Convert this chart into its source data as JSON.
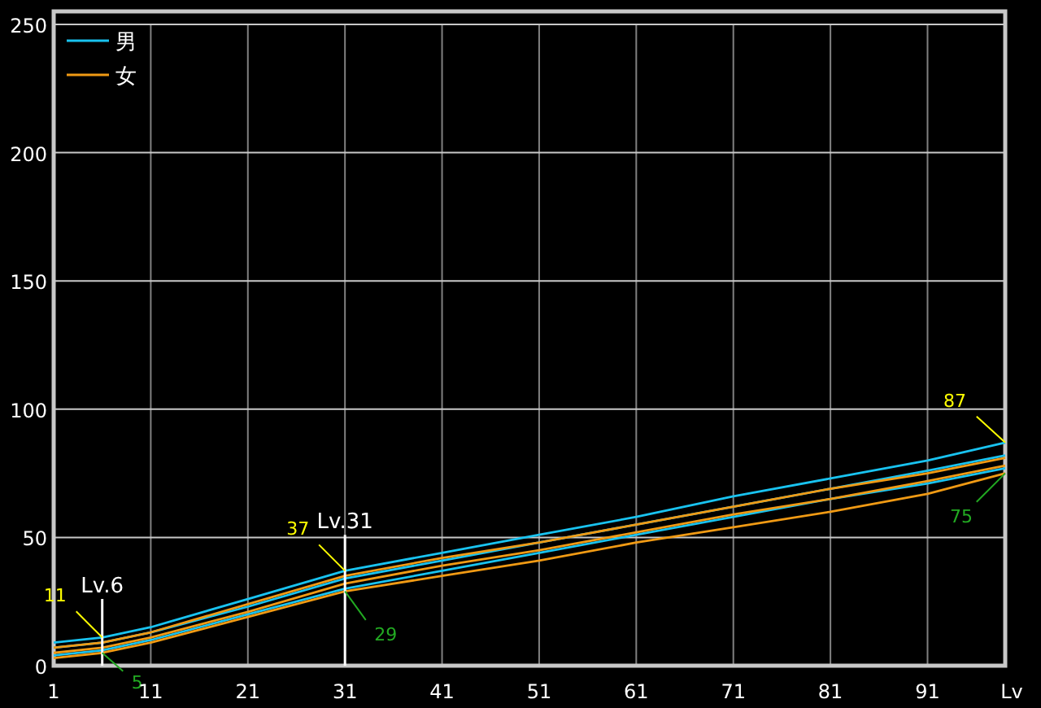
{
  "chart_data": {
    "type": "line",
    "xlabel": "Lv",
    "x": [
      1,
      6,
      11,
      21,
      31,
      41,
      51,
      61,
      71,
      81,
      91,
      99
    ],
    "series": [
      {
        "name": "男",
        "color": "#19c3f0",
        "values": [
          9,
          11,
          15,
          26,
          37,
          44,
          51,
          58,
          66,
          73,
          80,
          87
        ]
      },
      {
        "color": "#19c3f0",
        "values": [
          7,
          9,
          13,
          23,
          34,
          41,
          48,
          55,
          62,
          69,
          76,
          82
        ]
      },
      {
        "color": "#19c3f0",
        "values": [
          4,
          6,
          10,
          20,
          30,
          37,
          44,
          51,
          58,
          65,
          71,
          77
        ]
      },
      {
        "name": "女",
        "color": "#f09a14",
        "values": [
          7,
          9,
          13,
          24,
          35,
          42,
          48,
          55,
          62,
          69,
          75,
          81
        ]
      },
      {
        "color": "#f09a14",
        "values": [
          5,
          7,
          11,
          21,
          32,
          39,
          45,
          52,
          59,
          65,
          72,
          78
        ]
      },
      {
        "color": "#f09a14",
        "values": [
          3,
          5,
          9,
          19,
          29,
          35,
          41,
          48,
          54,
          60,
          67,
          75
        ]
      }
    ],
    "xlim": [
      1,
      99
    ],
    "xticks": [
      1,
      11,
      21,
      31,
      41,
      51,
      61,
      71,
      81,
      91
    ],
    "ylim": [
      0,
      250
    ],
    "yticks": [
      0,
      50,
      100,
      150,
      200,
      250
    ],
    "ref_lines": [
      {
        "axis": "x",
        "value": 6,
        "label": "Lv.6",
        "color": "#ffffff"
      },
      {
        "axis": "x",
        "value": 31,
        "label": "Lv.31",
        "color": "#ffffff"
      }
    ],
    "annotations": [
      {
        "text": "11",
        "x": 6,
        "y": 11
      },
      {
        "text": "5",
        "x": 6,
        "y": 5
      },
      {
        "text": "37",
        "x": 31,
        "y": 37
      },
      {
        "text": "29",
        "x": 31,
        "y": 29
      },
      {
        "text": "87",
        "x": 99,
        "y": 87
      },
      {
        "text": "75",
        "x": 99,
        "y": 75
      }
    ],
    "grid": true,
    "legend": "top left",
    "marker": "none",
    "line_style": "solid"
  }
}
